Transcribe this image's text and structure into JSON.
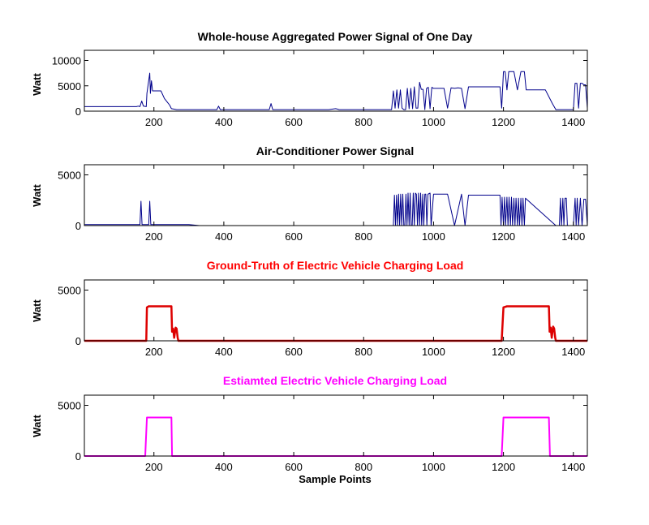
{
  "chart_data": [
    {
      "type": "line",
      "title": "Whole-house Aggregated Power Signal of One Day",
      "title_color": "#000000",
      "ylabel": "Watt",
      "xlabel": "",
      "xlim": [
        1,
        1440
      ],
      "ylim": [
        0,
        12000
      ],
      "xticks": [
        200,
        400,
        600,
        800,
        1000,
        1200,
        1400
      ],
      "yticks": [
        0,
        5000,
        10000
      ],
      "line_color": "#00008b",
      "line_width": 1,
      "series": [
        {
          "x": [
            1,
            150,
            155,
            160,
            165,
            170,
            178,
            180,
            188,
            190,
            193,
            196,
            200,
            205,
            220,
            230,
            245,
            250,
            265,
            300,
            380,
            385,
            390,
            530,
            535,
            540,
            700,
            720,
            730,
            880,
            885,
            890,
            895,
            900,
            905,
            910,
            915,
            920,
            925,
            930,
            935,
            940,
            945,
            950,
            955,
            960,
            965,
            970,
            975,
            980,
            985,
            990,
            995,
            1000,
            1005,
            1010,
            1020,
            1030,
            1040,
            1050,
            1060,
            1070,
            1080,
            1090,
            1100,
            1110,
            1130,
            1150,
            1170,
            1180,
            1190,
            1195,
            1200,
            1205,
            1210,
            1215,
            1220,
            1230,
            1240,
            1250,
            1260,
            1265,
            1270,
            1300,
            1320,
            1340,
            1350,
            1400,
            1405,
            1410,
            1415,
            1420,
            1425,
            1430,
            1435,
            1440
          ],
          "y": [
            900,
            900,
            1000,
            900,
            2000,
            1000,
            900,
            3500,
            7500,
            3500,
            6000,
            4000,
            4000,
            4000,
            4000,
            2500,
            1200,
            500,
            300,
            300,
            300,
            1000,
            300,
            300,
            1500,
            300,
            300,
            500,
            300,
            300,
            4000,
            600,
            4200,
            600,
            4200,
            600,
            300,
            300,
            4500,
            500,
            4500,
            500,
            4800,
            600,
            600,
            5700,
            4300,
            4300,
            300,
            4500,
            4700,
            500,
            4700,
            4500,
            4500,
            4500,
            4500,
            4500,
            600,
            4600,
            4500,
            4600,
            4500,
            500,
            4800,
            4800,
            4800,
            4800,
            4800,
            4800,
            4800,
            600,
            7800,
            7800,
            4200,
            7800,
            7800,
            7800,
            4200,
            7800,
            7800,
            4200,
            4200,
            4200,
            4200,
            1500,
            300,
            300,
            5500,
            5500,
            600,
            5500,
            5500,
            5200,
            5200,
            600
          ]
        }
      ]
    },
    {
      "type": "line",
      "title": "Air-Conditioner Power Signal",
      "title_color": "#000000",
      "ylabel": "Watt",
      "xlabel": "",
      "xlim": [
        1,
        1440
      ],
      "ylim": [
        0,
        6000
      ],
      "xticks": [
        200,
        400,
        600,
        800,
        1000,
        1200,
        1400
      ],
      "yticks": [
        0,
        5000
      ],
      "line_color": "#00008b",
      "line_width": 1,
      "series": [
        {
          "x": [
            1,
            150,
            160,
            163,
            166,
            170,
            185,
            188,
            191,
            195,
            300,
            330,
            350,
            880,
            885,
            888,
            891,
            894,
            897,
            900,
            903,
            906,
            909,
            912,
            915,
            918,
            921,
            924,
            927,
            930,
            933,
            936,
            939,
            942,
            945,
            948,
            951,
            954,
            957,
            960,
            963,
            966,
            969,
            972,
            975,
            978,
            981,
            984,
            990,
            993,
            1000,
            1020,
            1040,
            1060,
            1080,
            1090,
            1100,
            1150,
            1190,
            1193,
            1196,
            1200,
            1203,
            1206,
            1210,
            1213,
            1216,
            1220,
            1223,
            1226,
            1230,
            1233,
            1236,
            1240,
            1243,
            1246,
            1250,
            1253,
            1256,
            1260,
            1263,
            1350,
            1360,
            1363,
            1366,
            1370,
            1373,
            1376,
            1380,
            1383,
            1386,
            1400,
            1405,
            1408,
            1411,
            1415,
            1420,
            1425,
            1430,
            1435,
            1440
          ],
          "y": [
            100,
            100,
            100,
            2400,
            100,
            100,
            100,
            2400,
            100,
            100,
            100,
            0,
            0,
            0,
            0,
            3000,
            0,
            3000,
            0,
            3100,
            0,
            3100,
            0,
            3100,
            0,
            0,
            3100,
            0,
            3200,
            0,
            3200,
            0,
            0,
            3200,
            0,
            3200,
            3100,
            0,
            3200,
            0,
            3200,
            0,
            3100,
            0,
            3100,
            3100,
            0,
            3100,
            3200,
            0,
            3100,
            3100,
            3100,
            0,
            3100,
            0,
            3000,
            3000,
            3000,
            0,
            2800,
            0,
            2800,
            0,
            2800,
            0,
            2800,
            0,
            2800,
            0,
            2700,
            0,
            2700,
            0,
            2700,
            0,
            2700,
            0,
            2700,
            0,
            2700,
            0,
            0,
            2700,
            0,
            2700,
            0,
            2700,
            2700,
            0,
            0,
            0,
            2700,
            0,
            2700,
            0,
            2700,
            0,
            2600,
            2600,
            0
          ]
        }
      ]
    },
    {
      "type": "line",
      "title": "Ground-Truth of Electric Vehicle Charging Load",
      "title_color": "#ff0000",
      "ylabel": "Watt",
      "xlabel": "",
      "xlim": [
        1,
        1440
      ],
      "ylim": [
        0,
        6000
      ],
      "xticks": [
        200,
        400,
        600,
        800,
        1000,
        1200,
        1400
      ],
      "yticks": [
        0,
        5000
      ],
      "line_color": "#dd0000",
      "line_width": 2.5,
      "series": [
        {
          "x": [
            1,
            178,
            180,
            185,
            200,
            220,
            250,
            252,
            255,
            258,
            262,
            265,
            268,
            270,
            1195,
            1200,
            1210,
            1250,
            1300,
            1325,
            1330,
            1332,
            1335,
            1338,
            1342,
            1345,
            1348,
            1350,
            1440
          ],
          "y": [
            0,
            0,
            3300,
            3400,
            3400,
            3400,
            3400,
            900,
            1200,
            300,
            1300,
            1200,
            300,
            0,
            0,
            3300,
            3400,
            3400,
            3400,
            3400,
            3400,
            900,
            1300,
            300,
            1400,
            1200,
            300,
            0,
            0
          ]
        }
      ]
    },
    {
      "type": "line",
      "title": "Estiamted Electric Vehicle Charging Load",
      "title_color": "#ff00ff",
      "ylabel": "Watt",
      "xlabel": "Sample Points",
      "xlim": [
        1,
        1440
      ],
      "ylim": [
        0,
        6000
      ],
      "xticks": [
        200,
        400,
        600,
        800,
        1000,
        1200,
        1400
      ],
      "yticks": [
        0,
        5000
      ],
      "line_color": "#ff00ff",
      "line_width": 2,
      "series": [
        {
          "x": [
            1,
            175,
            180,
            250,
            252,
            1195,
            1200,
            1330,
            1333,
            1440
          ],
          "y": [
            0,
            0,
            3800,
            3800,
            0,
            0,
            3800,
            3800,
            0,
            0
          ]
        }
      ]
    }
  ]
}
